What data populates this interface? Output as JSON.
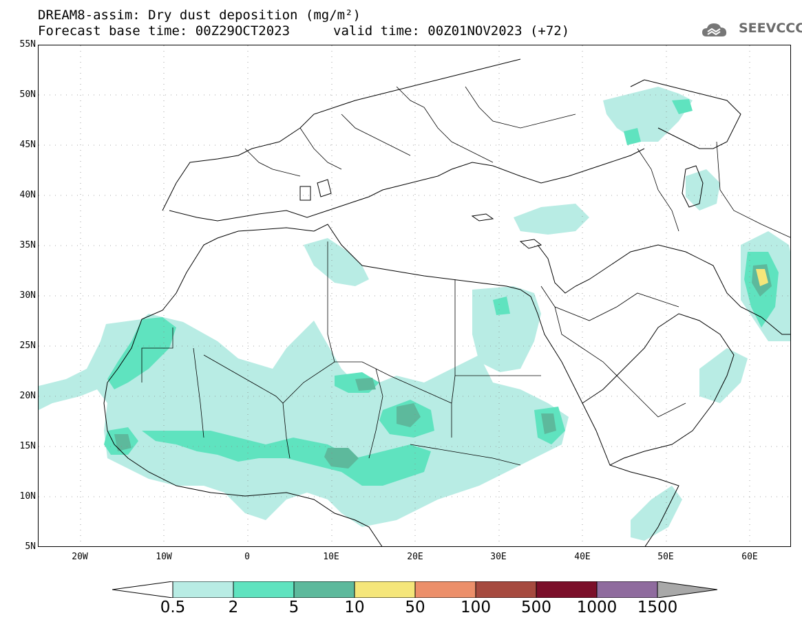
{
  "header": {
    "title_line1": "DREAM8-assim: Dry dust deposition (mg/m²)",
    "title_line2": "Forecast base time: 00Z29OCT2023",
    "valid_time": "valid time: 00Z01NOV2023 (+72)",
    "logo_text": "SEEVCCC",
    "logo_icon": "cloud-icon"
  },
  "map": {
    "lat_labels": [
      "55N",
      "50N",
      "45N",
      "40N",
      "35N",
      "30N",
      "25N",
      "20N",
      "15N",
      "10N",
      "5N"
    ],
    "lon_labels": [
      "20W",
      "10W",
      "0",
      "10E",
      "20E",
      "30E",
      "40E",
      "50E",
      "60E"
    ],
    "lat_range": [
      5,
      55
    ],
    "lon_range": [
      -25,
      65
    ],
    "grid": "dotted"
  },
  "legend": {
    "labels": [
      "0.5",
      "2",
      "5",
      "10",
      "50",
      "100",
      "500",
      "1000",
      "1500"
    ],
    "colors": [
      "#ffffff",
      "#b8ece4",
      "#5fe3bf",
      "#5db99c",
      "#f5e67a",
      "#ec8f6a",
      "#a64a3f",
      "#7b0f2a",
      "#8f6b9e",
      "#a8a8a8"
    ]
  }
}
